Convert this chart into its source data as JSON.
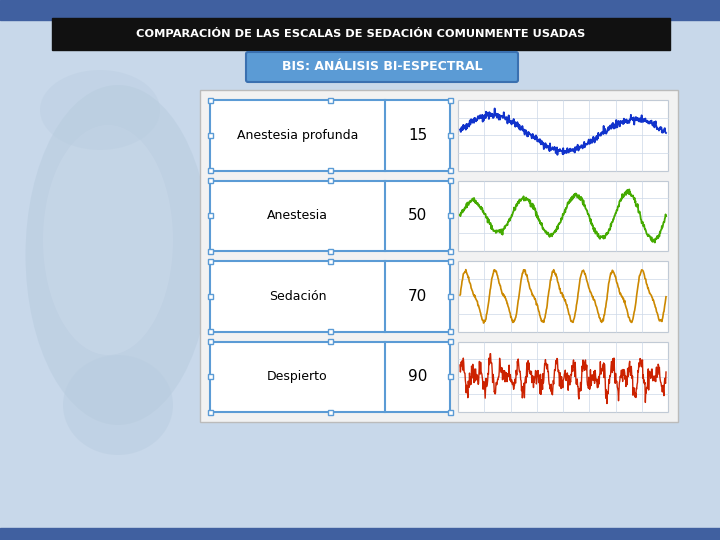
{
  "title": "COMPARACIÓN DE LAS ESCALAS DE SEDACIÓN COMUNMENTE USADAS",
  "subtitle": "BIS: ANÁLISIS BI-ESPECTRAL",
  "title_bg": "#111111",
  "title_color": "#ffffff",
  "subtitle_bg": "#5b9bd5",
  "subtitle_color": "#ffffff",
  "bg_color": "#c8d8ea",
  "rows": [
    {
      "label": "Despierto",
      "value": "90",
      "wave_color": "#cc2200"
    },
    {
      "label": "Sedación",
      "value": "70",
      "wave_color": "#cc8800"
    },
    {
      "label": "Anestesia",
      "value": "50",
      "wave_color": "#44aa00"
    },
    {
      "label": "Anestesia profunda",
      "value": "15",
      "wave_color": "#1133cc"
    }
  ],
  "panel_bg": "#f0f0f0",
  "panel_border": "#5b9bd5",
  "top_bar_color": "#4060a0",
  "bottom_bar_color": "#4060a0",
  "figsize": [
    7.2,
    5.4
  ],
  "dpi": 100
}
